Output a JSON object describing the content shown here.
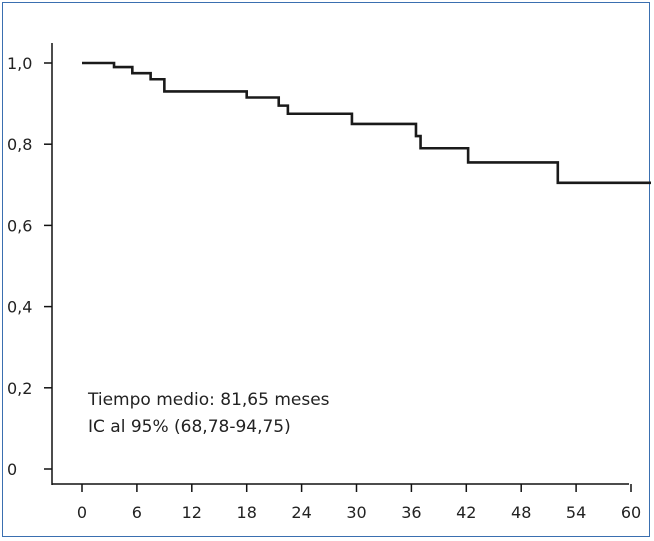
{
  "chart_data": {
    "type": "line",
    "title": "",
    "xlabel": "",
    "ylabel": "",
    "x_ticks": [
      "0",
      "6",
      "12",
      "18",
      "24",
      "30",
      "36",
      "42",
      "48",
      "54",
      "60"
    ],
    "y_ticks": [
      "0",
      "0,2",
      "0,4",
      "0,6",
      "0,8",
      "1,0"
    ],
    "xlim": [
      0,
      63
    ],
    "ylim": [
      0,
      1.04
    ],
    "step": "post",
    "series": [
      {
        "points": [
          [
            0,
            1.0
          ],
          [
            3.5,
            0.99
          ],
          [
            5.5,
            0.975
          ],
          [
            7.5,
            0.96
          ],
          [
            9,
            0.93
          ],
          [
            18,
            0.915
          ],
          [
            21.5,
            0.895
          ],
          [
            22.5,
            0.875
          ],
          [
            29.5,
            0.85
          ],
          [
            36.5,
            0.82
          ],
          [
            37,
            0.79
          ],
          [
            42.2,
            0.755
          ],
          [
            52,
            0.705
          ],
          [
            63,
            0.705
          ]
        ]
      }
    ],
    "annotations": [
      "Tiempo medio: 81,65 meses",
      "IC al 95% (68,78-94,75)"
    ],
    "grid": false,
    "line_color": "#1a1a1a"
  }
}
